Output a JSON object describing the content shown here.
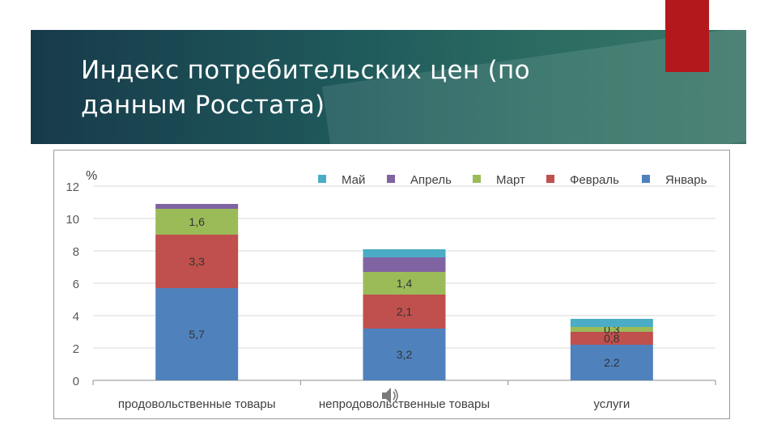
{
  "slide": {
    "title": "Индекс потребительских цен (по данным Росстата)"
  },
  "chart_data": {
    "type": "bar",
    "stacked": true,
    "ylabel": "%",
    "ylim": [
      0,
      12
    ],
    "yticks": [
      "0",
      "2",
      "4",
      "6",
      "8",
      "10",
      "12"
    ],
    "grid": true,
    "legend_position": "top-right",
    "categories": [
      "продовольственные товары",
      "непродовольственные товары",
      "услуги"
    ],
    "series": [
      {
        "name": "Январь",
        "color": "#4f81bd",
        "values": [
          5.7,
          3.2,
          2.2
        ],
        "labels": [
          "5,7",
          "3,2",
          "2.2"
        ]
      },
      {
        "name": "Февраль",
        "color": "#c0504d",
        "values": [
          3.3,
          2.1,
          0.8
        ],
        "labels": [
          "3,3",
          "2,1",
          "0,8"
        ]
      },
      {
        "name": "Март",
        "color": "#9bbb59",
        "values": [
          1.6,
          1.4,
          0.3
        ],
        "labels": [
          "1,6",
          "1,4",
          "0,3"
        ]
      },
      {
        "name": "Апрель",
        "color": "#8064a2",
        "values": [
          0.3,
          0.9,
          0.0
        ],
        "labels": [
          "",
          "",
          ""
        ]
      },
      {
        "name": "Май",
        "color": "#4bacc6",
        "values": [
          0.0,
          0.5,
          0.5
        ],
        "labels": [
          "",
          "",
          ""
        ]
      }
    ],
    "legend_order": [
      "Май",
      "Апрель",
      "Март",
      "Февраль",
      "Январь"
    ]
  }
}
